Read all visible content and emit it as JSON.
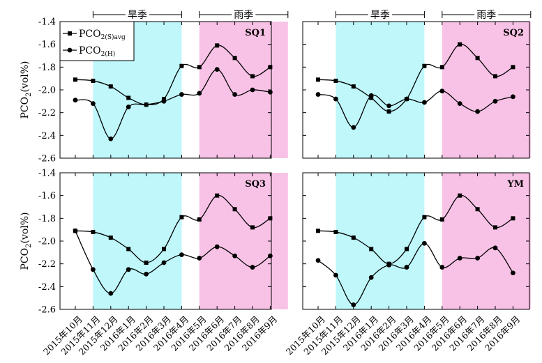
{
  "chart_data": {
    "type": "line",
    "ylabel": {
      "main": "PCO",
      "sub": "2",
      "rest": "(vol%)"
    },
    "ylim": [
      -2.6,
      -1.4
    ],
    "yticks": [
      -2.6,
      -2.4,
      -2.2,
      -2.0,
      -1.8,
      -1.6,
      -1.4
    ],
    "ytick_labels": [
      "-2.6",
      "-2.4",
      "-2.2",
      "-2.0",
      "-1.8",
      "-1.6",
      "-1.4"
    ],
    "x_labels": [
      "2015年10月",
      "2015年11月",
      "2015年12月",
      "2016年1月",
      "2016年2月",
      "2016年3月",
      "2016年4月",
      "2016年5月",
      "2016年6月",
      "2016年7月",
      "2016年8月",
      "2016年9月"
    ],
    "seasons": [
      {
        "label": "旱季",
        "start_index": 1,
        "end_index": 6,
        "color": "#bff7fb"
      },
      {
        "label": "雨季",
        "start_index": 7,
        "end_index": 12,
        "color": "#f8c2e6"
      }
    ],
    "legend": {
      "placement": "top-left",
      "entries": [
        {
          "marker": "square",
          "text": "PCO",
          "sub": "2(S)avg"
        },
        {
          "marker": "circle",
          "text": "PCO",
          "sub": "2(H)"
        }
      ]
    },
    "panels": [
      {
        "label": "SQ1",
        "series": [
          {
            "marker": "square",
            "values": [
              -1.91,
              -1.92,
              -1.97,
              -2.07,
              -2.13,
              -2.08,
              -1.79,
              -1.8,
              -1.61,
              -1.72,
              -1.88,
              -1.8
            ]
          },
          {
            "marker": "circle",
            "values": [
              -2.09,
              -2.12,
              -2.43,
              -2.15,
              -2.13,
              -2.1,
              -2.04,
              -2.03,
              -1.82,
              -2.04,
              -2.0,
              -2.02
            ]
          }
        ]
      },
      {
        "label": "SQ2",
        "series": [
          {
            "marker": "square",
            "values": [
              -1.91,
              -1.92,
              -1.97,
              -2.07,
              -2.19,
              -2.08,
              -1.79,
              -1.8,
              -1.6,
              -1.72,
              -1.88,
              -1.8
            ]
          },
          {
            "marker": "circle",
            "values": [
              -2.04,
              -2.08,
              -2.33,
              -2.05,
              -2.14,
              -2.08,
              -2.11,
              -2.01,
              -2.12,
              -2.19,
              -2.1,
              -2.06
            ]
          }
        ]
      },
      {
        "label": "SQ3",
        "series": [
          {
            "marker": "square",
            "values": [
              -1.91,
              -1.92,
              -1.97,
              -2.07,
              -2.19,
              -2.07,
              -1.79,
              -1.81,
              -1.6,
              -1.72,
              -1.88,
              -1.8
            ]
          },
          {
            "marker": "circle",
            "values": [
              -1.91,
              -2.25,
              -2.46,
              -2.25,
              -2.29,
              -2.19,
              -2.12,
              -2.15,
              -2.05,
              -2.13,
              -2.23,
              -2.13
            ]
          }
        ]
      },
      {
        "label": "YM",
        "series": [
          {
            "marker": "square",
            "values": [
              -1.91,
              -1.92,
              -1.97,
              -2.07,
              -2.2,
              -2.07,
              -1.79,
              -1.81,
              -1.6,
              -1.72,
              -1.88,
              -1.8
            ]
          },
          {
            "marker": "circle",
            "values": [
              -2.17,
              -2.3,
              -2.56,
              -2.32,
              -2.21,
              -2.23,
              -2.02,
              -2.23,
              -2.15,
              -2.15,
              -2.06,
              -2.28
            ]
          }
        ]
      }
    ]
  }
}
